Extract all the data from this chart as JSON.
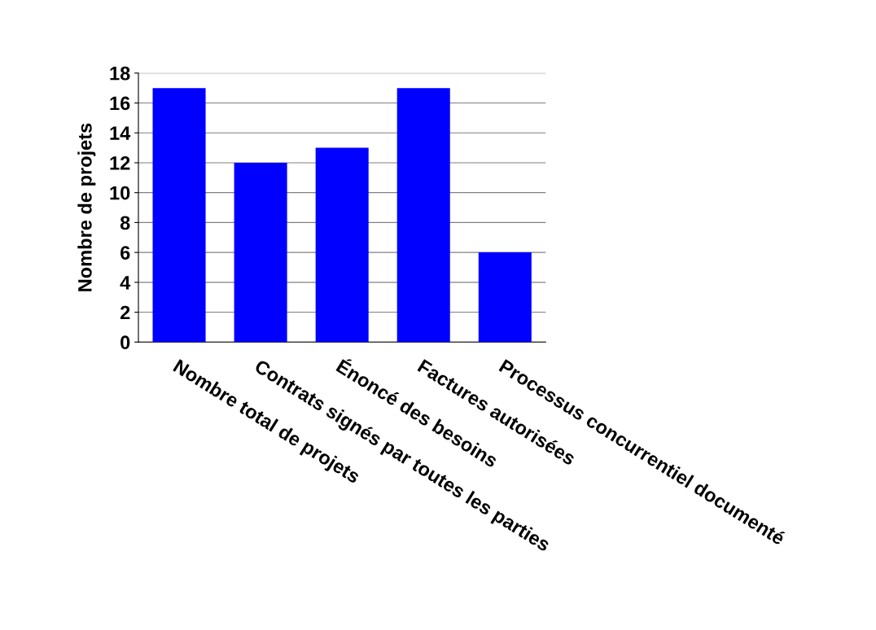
{
  "chart_data": {
    "type": "bar",
    "ylabel": "Nombre de projets",
    "categories": [
      "Nombre total de projets",
      "Contrats signés par toutes les parties",
      "Énoncé des besoins",
      "Factures autorisées",
      "Processus concurrentiel documenté"
    ],
    "values": [
      17,
      12,
      13,
      17,
      6
    ],
    "color": "#0000ff",
    "ylim": [
      0,
      18
    ],
    "yticks": [
      0,
      2,
      4,
      6,
      8,
      10,
      12,
      14,
      16,
      18
    ],
    "grid": "y",
    "legend": false
  }
}
